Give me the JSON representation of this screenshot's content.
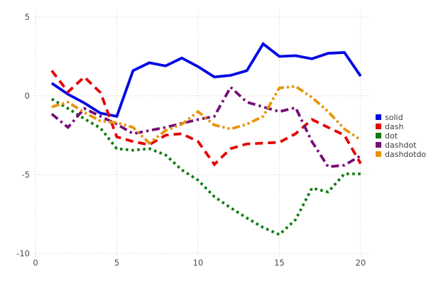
{
  "chart_data": {
    "type": "line",
    "title": "",
    "xlabel": "",
    "ylabel": "",
    "xlim": [
      0,
      20
    ],
    "ylim": [
      -10,
      5
    ],
    "x_ticks": [
      0,
      5,
      10,
      15,
      20
    ],
    "y_ticks": [
      5,
      0,
      -5,
      -10
    ],
    "grid": "dotted",
    "legend_position": "right",
    "x": [
      1,
      2,
      3,
      4,
      5,
      6,
      7,
      8,
      9,
      10,
      11,
      12,
      13,
      14,
      15,
      16,
      17,
      18,
      19,
      20
    ],
    "series": [
      {
        "name": "solid",
        "color": "#0008e6",
        "line_style": "solid",
        "values": [
          0.8,
          0.1,
          -0.45,
          -1.1,
          -1.3,
          1.6,
          2.1,
          1.9,
          2.4,
          1.85,
          1.2,
          1.3,
          1.6,
          3.3,
          2.5,
          2.55,
          2.35,
          2.7,
          2.75,
          1.25
        ]
      },
      {
        "name": "dash",
        "color": "#e60000",
        "line_style": "dash",
        "values": [
          1.6,
          0.25,
          1.2,
          0.2,
          -2.6,
          -2.9,
          -3.1,
          -2.5,
          -2.4,
          -2.9,
          -4.35,
          -3.35,
          -3.05,
          -3.0,
          -2.95,
          -2.4,
          -1.5,
          -2.0,
          -2.5,
          -4.3
        ]
      },
      {
        "name": "dot",
        "color": "#0e7a0e",
        "line_style": "dot",
        "values": [
          -0.2,
          -0.8,
          -1.45,
          -2.05,
          -3.35,
          -3.45,
          -3.35,
          -3.75,
          -4.7,
          -5.35,
          -6.4,
          -7.1,
          -7.75,
          -8.35,
          -8.8,
          -7.85,
          -5.85,
          -6.1,
          -4.95,
          -4.95
        ]
      },
      {
        "name": "dashdot",
        "color": "#750f75",
        "line_style": "dashdot",
        "values": [
          -1.15,
          -2.0,
          -0.8,
          -1.3,
          -1.8,
          -2.4,
          -2.2,
          -2.0,
          -1.75,
          -1.5,
          -1.3,
          0.55,
          -0.4,
          -0.7,
          -1.0,
          -0.75,
          -2.9,
          -4.5,
          -4.4,
          -3.8
        ]
      },
      {
        "name": "dashdotdot",
        "color": "#e8940a",
        "line_style": "dashdotdot",
        "values": [
          -0.7,
          -0.4,
          -1.05,
          -1.6,
          -1.7,
          -2.0,
          -3.0,
          -2.2,
          -1.8,
          -1.0,
          -1.85,
          -2.1,
          -1.8,
          -1.3,
          0.5,
          0.6,
          -0.1,
          -1.0,
          -2.1,
          -2.8
        ]
      }
    ],
    "legend_entries": [
      "solid",
      "dash",
      "dot",
      "dashdot",
      "dashdotdot"
    ]
  },
  "colors": {
    "background": "#ffffff",
    "grid": "#d4d4d4",
    "tick_text": "#4d4d4d",
    "legend_text": "#3c3c3c"
  }
}
